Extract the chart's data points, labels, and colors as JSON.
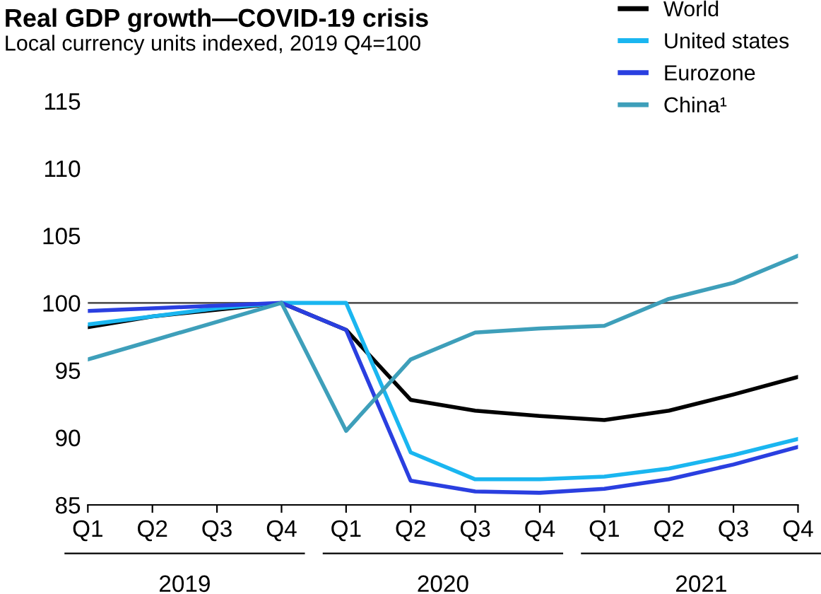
{
  "chart_data": {
    "type": "line",
    "title": "Real GDP growth—COVID-19 crisis",
    "subtitle": "Local currency units indexed, 2019 Q4=100",
    "categories": [
      "Q1",
      "Q2",
      "Q3",
      "Q4",
      "Q1",
      "Q2",
      "Q3",
      "Q4",
      "Q1",
      "Q2",
      "Q3",
      "Q4"
    ],
    "series": [
      {
        "name": "World",
        "color": "#000000",
        "values": [
          98.2,
          99.0,
          99.5,
          100,
          98.0,
          92.8,
          92.0,
          91.6,
          91.3,
          92.0,
          93.2,
          94.5
        ]
      },
      {
        "name": "United states",
        "color": "#1ab6f0",
        "values": [
          98.4,
          99.0,
          99.6,
          100,
          100,
          88.9,
          86.9,
          86.9,
          87.1,
          87.7,
          88.7,
          89.9
        ]
      },
      {
        "name": "Eurozone",
        "color": "#2a3fe0",
        "values": [
          99.4,
          99.6,
          99.8,
          100,
          98.0,
          86.8,
          86.0,
          85.9,
          86.2,
          86.9,
          88.0,
          89.3
        ]
      },
      {
        "name": "China¹",
        "color": "#3e9fba",
        "values": [
          95.8,
          97.2,
          98.6,
          100,
          90.5,
          95.8,
          97.8,
          98.1,
          98.3,
          100.3,
          101.5,
          103.5
        ]
      }
    ],
    "ylim": [
      85,
      115
    ],
    "yticks": [
      85,
      90,
      95,
      100,
      105,
      110,
      115
    ],
    "ref_lines": [
      {
        "axis": "y",
        "value": 100,
        "color": "#555555"
      }
    ],
    "annotations": [
      "2019",
      "2020",
      "2021"
    ],
    "legend": "top right",
    "grid": false,
    "marker": "none",
    "line_style": "solid"
  }
}
